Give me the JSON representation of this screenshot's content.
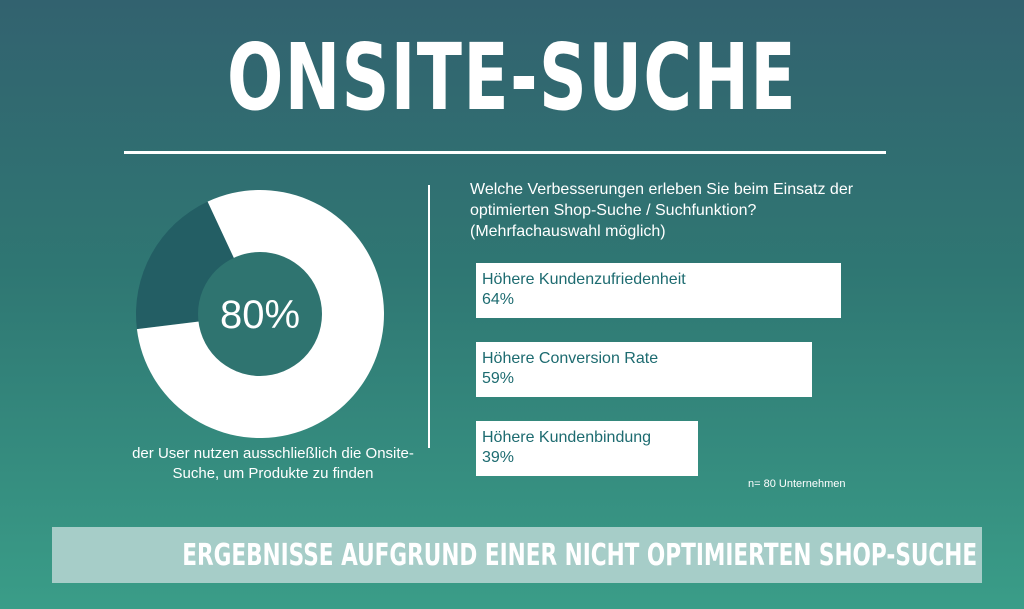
{
  "title": "ONSITE-SUCHE",
  "donut": {
    "value_label": "80%",
    "share": 0.8,
    "colors": {
      "filled": "#ffffff",
      "rest": "#235e64",
      "center": "#2f7470"
    },
    "caption": "der User nutzen ausschließlich die Onsite-Suche, um Produkte zu finden"
  },
  "question": "Welche Verbesserungen erleben Sie beim Einsatz der optimierten Shop-Suche / Suchfunktion? (Mehrfachauswahl möglich)",
  "chart_data": {
    "type": "bar",
    "orientation": "horizontal",
    "categories": [
      "Höhere Kundenzufriedenheit",
      "Höhere Conversion Rate",
      "Höhere Kundenbindung"
    ],
    "values": [
      64,
      59,
      39
    ],
    "value_labels": [
      "64%",
      "59%",
      "39%"
    ],
    "unit": "%",
    "xlim": [
      0,
      100
    ]
  },
  "note": "n= 80 Unternehmen",
  "banner": "ERGEBNISSE AUFGRUND EINER NICHT OPTIMIERTEN SHOP-SUCHE"
}
